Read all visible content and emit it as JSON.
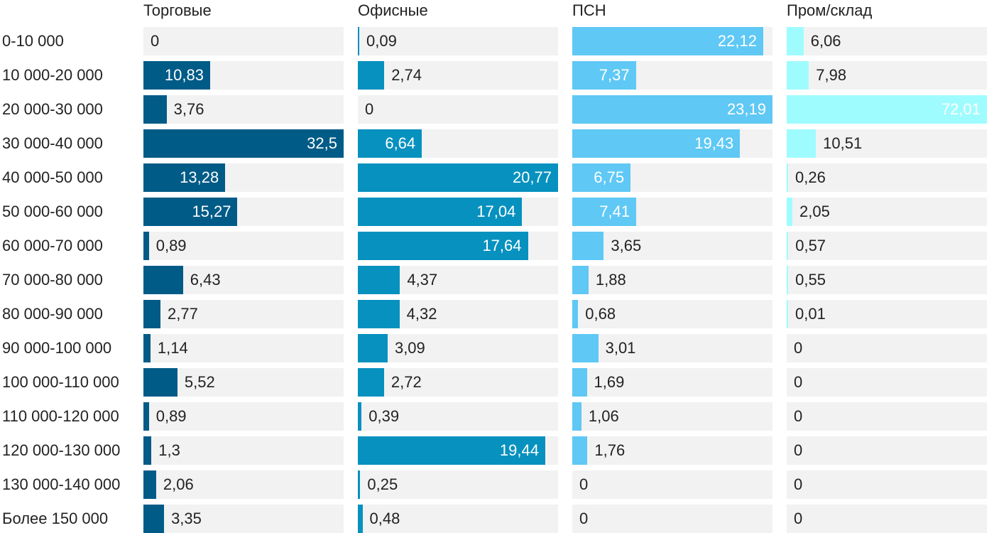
{
  "chart_data": {
    "type": "bar",
    "orientation": "horizontal",
    "layout": "small-multiples",
    "categories": [
      "0-10 000",
      "10 000-20 000",
      "20 000-30 000",
      "30 000-40 000",
      "40 000-50 000",
      "50 000-60 000",
      "60 000-70 000",
      "70 000-80 000",
      "80 000-90 000",
      "90 000-100 000",
      "100 000-110 000",
      "110 000-120 000",
      "120 000-130 000",
      "130 000-140 000",
      "Более 150 000"
    ],
    "series": [
      {
        "name": "Торговые",
        "color": "#005b87",
        "values": [
          0,
          10.83,
          3.76,
          32.5,
          13.28,
          15.27,
          0.89,
          6.43,
          2.77,
          1.14,
          5.52,
          0.89,
          1.3,
          2.06,
          3.35
        ],
        "labels": [
          "0",
          "10,83",
          "3,76",
          "32,5",
          "13,28",
          "15,27",
          "0,89",
          "6,43",
          "2,77",
          "1,14",
          "5,52",
          "0,89",
          "1,3",
          "2,06",
          "3,35"
        ]
      },
      {
        "name": "Офисные",
        "color": "#0791bf",
        "values": [
          0.09,
          2.74,
          0,
          6.64,
          20.77,
          17.04,
          17.64,
          4.37,
          4.32,
          3.09,
          2.72,
          0.39,
          19.44,
          0.25,
          0.48
        ],
        "labels": [
          "0,09",
          "2,74",
          "0",
          "6,64",
          "20,77",
          "17,04",
          "17,64",
          "4,37",
          "4,32",
          "3,09",
          "2,72",
          "0,39",
          "19,44",
          "0,25",
          "0,48"
        ]
      },
      {
        "name": "ПСН",
        "color": "#5fc8f5",
        "values": [
          22.12,
          7.37,
          23.19,
          19.43,
          6.75,
          7.41,
          3.65,
          1.88,
          0.68,
          3.01,
          1.69,
          1.06,
          1.76,
          0,
          0
        ],
        "labels": [
          "22,12",
          "7,37",
          "23,19",
          "19,43",
          "6,75",
          "7,41",
          "3,65",
          "1,88",
          "0,68",
          "3,01",
          "1,69",
          "1,06",
          "1,76",
          "0",
          "0"
        ]
      },
      {
        "name": "Пром/склад",
        "color": "#9ffcfe",
        "values": [
          6.06,
          7.98,
          72.01,
          10.51,
          0.26,
          2.05,
          0.57,
          0.55,
          0.01,
          0,
          0,
          0,
          0,
          0,
          0
        ],
        "labels": [
          "6,06",
          "7,98",
          "72,01",
          "10,51",
          "0,26",
          "2,05",
          "0,57",
          "0,55",
          "0,01",
          "0",
          "0",
          "0",
          "0",
          "0",
          "0"
        ]
      }
    ],
    "title": "",
    "xlabel": "",
    "ylabel": "",
    "grid": false,
    "legend": "none"
  }
}
